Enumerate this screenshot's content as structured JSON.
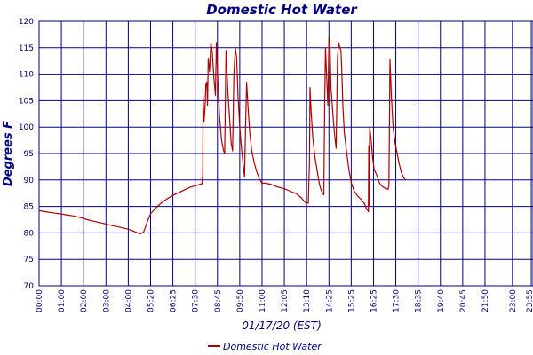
{
  "chart_data": {
    "type": "line",
    "title": "Domestic Hot Water",
    "xlabel": "01/17/20 (EST)",
    "ylabel": "Degrees F",
    "ylim": [
      70,
      120
    ],
    "y_ticks": [
      70,
      75,
      80,
      85,
      90,
      95,
      100,
      105,
      110,
      115,
      120
    ],
    "xlim": [
      0,
      1440
    ],
    "x_tick_labels": [
      "00:00",
      "01:00",
      "02:00",
      "03:00",
      "04:00",
      "05:20",
      "06:25",
      "07:30",
      "08:45",
      "09:50",
      "11:00",
      "12:05",
      "13:10",
      "14:25",
      "15:25",
      "16:25",
      "17:30",
      "18:35",
      "19:40",
      "20:45",
      "21:50",
      "23:00",
      "23:55"
    ],
    "x_ticks_minutes": [
      0,
      65,
      130,
      195,
      260,
      325,
      390,
      455,
      520,
      585,
      650,
      715,
      780,
      845,
      910,
      975,
      1040,
      1105,
      1170,
      1235,
      1300,
      1380,
      1435
    ],
    "grid": true,
    "legend": "bottom-center",
    "series": [
      {
        "name": "Domestic Hot Water",
        "color": "#b00000",
        "points": [
          [
            0,
            84.2
          ],
          [
            20,
            84.0
          ],
          [
            40,
            83.8
          ],
          [
            60,
            83.6
          ],
          [
            80,
            83.4
          ],
          [
            100,
            83.2
          ],
          [
            120,
            82.9
          ],
          [
            140,
            82.5
          ],
          [
            160,
            82.2
          ],
          [
            180,
            81.9
          ],
          [
            200,
            81.6
          ],
          [
            220,
            81.3
          ],
          [
            240,
            81.0
          ],
          [
            260,
            80.7
          ],
          [
            280,
            80.2
          ],
          [
            295,
            79.8
          ],
          [
            305,
            80.2
          ],
          [
            315,
            82.0
          ],
          [
            325,
            83.6
          ],
          [
            340,
            84.7
          ],
          [
            355,
            85.6
          ],
          [
            370,
            86.3
          ],
          [
            385,
            86.9
          ],
          [
            400,
            87.4
          ],
          [
            420,
            88.0
          ],
          [
            440,
            88.6
          ],
          [
            460,
            89.0
          ],
          [
            475,
            89.3
          ],
          [
            477,
            91.0
          ],
          [
            478,
            105.8
          ],
          [
            481,
            101.0
          ],
          [
            484,
            104.0
          ],
          [
            486,
            108.0
          ],
          [
            489,
            108.5
          ],
          [
            491,
            104.0
          ],
          [
            493,
            113.0
          ],
          [
            497,
            110.5
          ],
          [
            501,
            116.0
          ],
          [
            505,
            114.0
          ],
          [
            510,
            109.0
          ],
          [
            514,
            106.0
          ],
          [
            517,
            116.0
          ],
          [
            521,
            109.0
          ],
          [
            526,
            102.0
          ],
          [
            532,
            97.5
          ],
          [
            538,
            95.5
          ],
          [
            541,
            95.0
          ],
          [
            545,
            114.5
          ],
          [
            550,
            107.0
          ],
          [
            555,
            102.0
          ],
          [
            560,
            97.0
          ],
          [
            564,
            95.5
          ],
          [
            568,
            110.0
          ],
          [
            572,
            115.0
          ],
          [
            576,
            113.0
          ],
          [
            580,
            106.0
          ],
          [
            585,
            100.0
          ],
          [
            590,
            96.0
          ],
          [
            595,
            93.0
          ],
          [
            599,
            90.5
          ],
          [
            602,
            100.0
          ],
          [
            605,
            108.5
          ],
          [
            609,
            104.0
          ],
          [
            614,
            99.0
          ],
          [
            620,
            95.5
          ],
          [
            628,
            93.0
          ],
          [
            635,
            91.5
          ],
          [
            642,
            90.2
          ],
          [
            650,
            89.4
          ],
          [
            660,
            89.4
          ],
          [
            675,
            89.2
          ],
          [
            690,
            88.8
          ],
          [
            705,
            88.5
          ],
          [
            720,
            88.2
          ],
          [
            735,
            87.8
          ],
          [
            750,
            87.4
          ],
          [
            765,
            86.6
          ],
          [
            775,
            85.8
          ],
          [
            785,
            85.6
          ],
          [
            788,
            93.0
          ],
          [
            790,
            107.5
          ],
          [
            793,
            103.0
          ],
          [
            798,
            98.0
          ],
          [
            804,
            94.5
          ],
          [
            810,
            92.0
          ],
          [
            815,
            90.0
          ],
          [
            820,
            88.5
          ],
          [
            826,
            87.5
          ],
          [
            830,
            87.2
          ],
          [
            833,
            105.0
          ],
          [
            835,
            115.0
          ],
          [
            838,
            110.0
          ],
          [
            842,
            104.0
          ],
          [
            845,
            117.0
          ],
          [
            848,
            116.0
          ],
          [
            851,
            107.5
          ],
          [
            856,
            103.0
          ],
          [
            861,
            99.0
          ],
          [
            866,
            96.0
          ],
          [
            870,
            113.0
          ],
          [
            873,
            116.0
          ],
          [
            877,
            115.0
          ],
          [
            880,
            114.5
          ],
          [
            883,
            110.0
          ],
          [
            886,
            103.5
          ],
          [
            890,
            99.0
          ],
          [
            896,
            95.5
          ],
          [
            903,
            92.0
          ],
          [
            910,
            89.5
          ],
          [
            918,
            88.0
          ],
          [
            928,
            87.0
          ],
          [
            938,
            86.4
          ],
          [
            948,
            85.6
          ],
          [
            955,
            84.5
          ],
          [
            960,
            84.0
          ],
          [
            961,
            96.5
          ],
          [
            962,
            85.0
          ],
          [
            964,
            100.0
          ],
          [
            968,
            97.5
          ],
          [
            972,
            94.5
          ],
          [
            977,
            92.0
          ],
          [
            984,
            91.0
          ],
          [
            992,
            89.5
          ],
          [
            1000,
            88.8
          ],
          [
            1010,
            88.4
          ],
          [
            1017,
            88.2
          ],
          [
            1020,
            88.8
          ],
          [
            1023,
            112.8
          ],
          [
            1027,
            106.0
          ],
          [
            1032,
            100.0
          ],
          [
            1038,
            97.0
          ],
          [
            1044,
            95.0
          ],
          [
            1050,
            93.0
          ],
          [
            1056,
            91.5
          ],
          [
            1062,
            90.5
          ],
          [
            1068,
            90.0
          ]
        ]
      }
    ]
  }
}
